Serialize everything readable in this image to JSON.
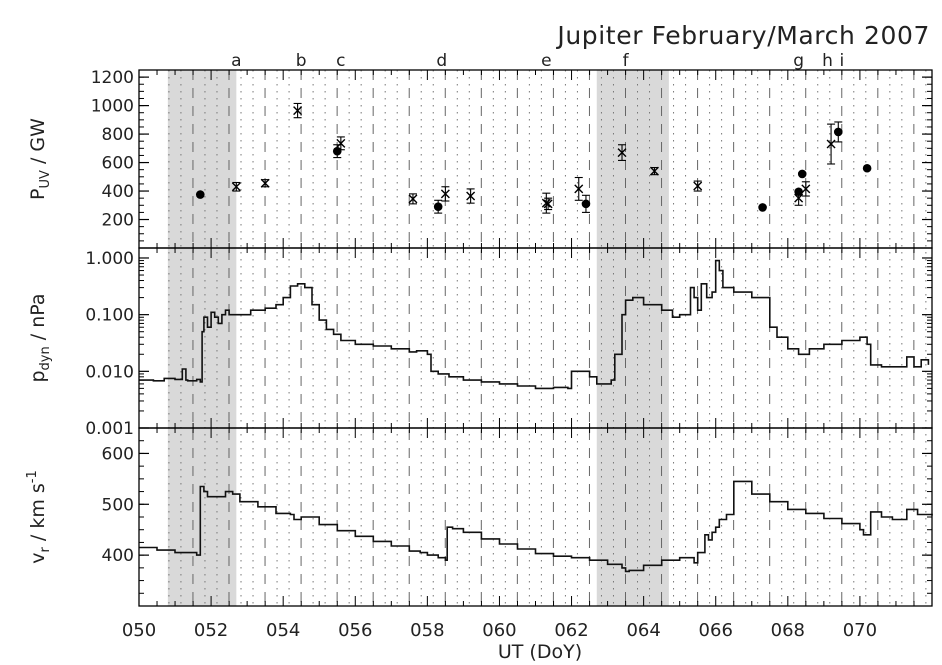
{
  "chart_data": [
    {
      "type": "scatter",
      "title": "Jupiter February/March 2007",
      "ylabel_main": "P",
      "ylabel_sub": "UV",
      "ylabel_rest": " / GW",
      "y_scale": "linear",
      "ylim": [
        0,
        1250
      ],
      "y_ticks": [
        200,
        400,
        600,
        800,
        1000,
        1200
      ],
      "y_tick_labels": [
        "200",
        "400",
        "600",
        "800",
        "1000",
        "1200"
      ],
      "event_markers": [
        {
          "label": "a",
          "x": 52.7
        },
        {
          "label": "b",
          "x": 54.5
        },
        {
          "label": "c",
          "x": 55.6
        },
        {
          "label": "d",
          "x": 58.4
        },
        {
          "label": "e",
          "x": 61.3
        },
        {
          "label": "f",
          "x": 63.5
        },
        {
          "label": "g",
          "x": 68.3
        },
        {
          "label": "h",
          "x": 69.1
        },
        {
          "label": "i",
          "x": 69.5
        }
      ],
      "series": [
        {
          "marker": "dot",
          "points": [
            {
              "x": 51.7,
              "y": 375
            },
            {
              "x": 55.5,
              "y": 680,
              "err": 45
            },
            {
              "x": 58.3,
              "y": 290,
              "err": 45
            },
            {
              "x": 62.4,
              "y": 310,
              "err": 60
            },
            {
              "x": 67.3,
              "y": 285
            },
            {
              "x": 68.3,
              "y": 395
            },
            {
              "x": 68.4,
              "y": 520
            },
            {
              "x": 69.4,
              "y": 815,
              "err": 70
            },
            {
              "x": 70.2,
              "y": 560
            }
          ]
        },
        {
          "marker": "cross",
          "points": [
            {
              "x": 52.7,
              "y": 430,
              "err": 30
            },
            {
              "x": 53.5,
              "y": 455,
              "err": 25
            },
            {
              "x": 54.4,
              "y": 965,
              "err": 50
            },
            {
              "x": 55.6,
              "y": 735,
              "err": 45
            },
            {
              "x": 57.6,
              "y": 345,
              "err": 35
            },
            {
              "x": 58.5,
              "y": 380,
              "err": 50
            },
            {
              "x": 59.2,
              "y": 365,
              "err": 50
            },
            {
              "x": 61.3,
              "y": 315,
              "err": 70
            },
            {
              "x": 61.35,
              "y": 310,
              "err": 40
            },
            {
              "x": 62.2,
              "y": 415,
              "err": 80
            },
            {
              "x": 63.4,
              "y": 670,
              "err": 55
            },
            {
              "x": 64.3,
              "y": 540,
              "err": 25
            },
            {
              "x": 65.5,
              "y": 435,
              "err": 35
            },
            {
              "x": 68.3,
              "y": 350,
              "err": 50
            },
            {
              "x": 68.5,
              "y": 415,
              "err": 50
            },
            {
              "x": 69.2,
              "y": 730,
              "err": 140
            }
          ]
        }
      ]
    },
    {
      "type": "line",
      "ylabel_main": "p",
      "ylabel_sub": "dyn",
      "ylabel_rest": " / nPa",
      "y_scale": "log",
      "ylim": [
        0.001,
        1.5
      ],
      "y_ticks": [
        0.001,
        0.01,
        0.1,
        1.0
      ],
      "y_tick_labels": [
        "0.001",
        "0.010",
        "0.100",
        "1.000"
      ],
      "series": [
        {
          "x": [
            50.0,
            50.4,
            50.7,
            51.0,
            51.2,
            51.3,
            51.35,
            51.6,
            51.7,
            51.75,
            51.8,
            51.9,
            52.0,
            52.1,
            52.2,
            52.3,
            52.4,
            52.5,
            52.7,
            52.9,
            53.1,
            53.5,
            53.8,
            54.0,
            54.2,
            54.4,
            54.6,
            54.8,
            55.0,
            55.2,
            55.4,
            55.6,
            56.0,
            56.5,
            57.0,
            57.5,
            57.7,
            58.0,
            58.1,
            58.3,
            58.6,
            59.0,
            59.5,
            60.0,
            60.5,
            61.0,
            61.5,
            61.9,
            62.0,
            62.5,
            62.7,
            63.0,
            63.1,
            63.2,
            63.4,
            63.5,
            63.7,
            64.0,
            64.5,
            64.8,
            65.0,
            65.3,
            65.4,
            65.5,
            65.6,
            65.75,
            65.9,
            66.0,
            66.1,
            66.2,
            66.5,
            67.0,
            67.5,
            67.7,
            68.0,
            68.3,
            68.6,
            69.0,
            69.5,
            70.0,
            70.2,
            70.3,
            70.6,
            71.0,
            71.3,
            71.5,
            71.7,
            71.9
          ],
          "y": [
            0.007,
            0.0068,
            0.0075,
            0.0072,
            0.011,
            0.007,
            0.0068,
            0.0072,
            0.0065,
            0.05,
            0.09,
            0.06,
            0.11,
            0.09,
            0.07,
            0.1,
            0.12,
            0.1,
            0.1,
            0.1,
            0.12,
            0.13,
            0.15,
            0.2,
            0.32,
            0.35,
            0.3,
            0.15,
            0.08,
            0.055,
            0.045,
            0.035,
            0.03,
            0.028,
            0.025,
            0.022,
            0.023,
            0.02,
            0.01,
            0.009,
            0.008,
            0.007,
            0.0065,
            0.006,
            0.0055,
            0.005,
            0.0052,
            0.005,
            0.01,
            0.008,
            0.006,
            0.006,
            0.007,
            0.02,
            0.1,
            0.18,
            0.2,
            0.15,
            0.12,
            0.09,
            0.1,
            0.3,
            0.2,
            0.12,
            0.35,
            0.2,
            0.25,
            0.9,
            0.6,
            0.3,
            0.25,
            0.2,
            0.06,
            0.04,
            0.025,
            0.02,
            0.025,
            0.03,
            0.035,
            0.04,
            0.03,
            0.013,
            0.012,
            0.012,
            0.018,
            0.012,
            0.016,
            0.013
          ]
        }
      ]
    },
    {
      "type": "line",
      "ylabel_main": "v",
      "ylabel_sub": "r",
      "ylabel_rest": " / km s",
      "ylabel_sup": "-1",
      "y_scale": "linear",
      "ylim": [
        300,
        650
      ],
      "y_ticks": [
        400,
        500,
        600
      ],
      "y_tick_labels": [
        "400",
        "500",
        "600"
      ],
      "xlabel": "UT (DoY)",
      "xlim": [
        50,
        72
      ],
      "x_ticks": [
        50,
        52,
        54,
        56,
        58,
        60,
        62,
        64,
        66,
        68,
        70
      ],
      "x_tick_labels": [
        "050",
        "052",
        "054",
        "056",
        "058",
        "060",
        "062",
        "064",
        "066",
        "068",
        "070"
      ],
      "series": [
        {
          "x": [
            50.0,
            50.5,
            51.0,
            51.6,
            51.7,
            51.8,
            51.9,
            52.2,
            52.4,
            52.6,
            52.8,
            53.3,
            53.8,
            54.2,
            54.3,
            54.5,
            55.0,
            55.5,
            56.0,
            56.5,
            57.0,
            57.5,
            57.8,
            58.0,
            58.3,
            58.5,
            58.55,
            58.7,
            59.0,
            59.5,
            60.0,
            60.5,
            61.0,
            61.5,
            62.0,
            62.5,
            63.0,
            63.4,
            63.5,
            63.6,
            63.8,
            64.0,
            64.5,
            65.0,
            65.4,
            65.5,
            65.7,
            65.8,
            65.9,
            66.0,
            66.1,
            66.3,
            66.5,
            67.0,
            67.5,
            68.0,
            68.5,
            69.0,
            69.5,
            70.0,
            70.1,
            70.3,
            70.6,
            70.9,
            71.3,
            71.6,
            72.0
          ],
          "y": [
            415,
            410,
            405,
            400,
            535,
            525,
            515,
            515,
            525,
            520,
            505,
            495,
            482,
            480,
            470,
            475,
            460,
            448,
            437,
            427,
            418,
            408,
            405,
            400,
            395,
            390,
            455,
            452,
            445,
            432,
            422,
            412,
            403,
            398,
            395,
            390,
            382,
            375,
            368,
            370,
            370,
            380,
            390,
            395,
            385,
            405,
            440,
            430,
            445,
            455,
            470,
            480,
            545,
            520,
            505,
            490,
            482,
            472,
            462,
            450,
            440,
            485,
            475,
            470,
            490,
            480,
            478
          ]
        }
      ]
    }
  ],
  "shaded_intervals": [
    [
      50.8,
      52.7
    ],
    [
      62.7,
      64.7
    ]
  ]
}
